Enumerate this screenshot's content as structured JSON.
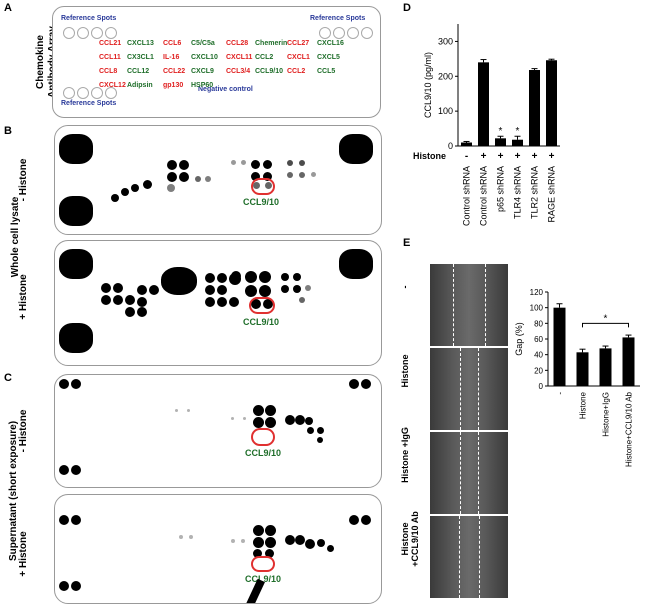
{
  "labels": {
    "A": "A",
    "B": "B",
    "C": "C",
    "D": "D",
    "E": "E"
  },
  "panelA": {
    "side_label_line1": "Chemokine",
    "side_label_line2": "Antibody Array",
    "ref_top_left": "Reference Spots",
    "ref_top_right": "Reference Spots",
    "ref_bottom": "Reference Spots",
    "negative": "Negative control",
    "rows": [
      [
        "CCL21",
        "CXCL13",
        "CCL6",
        "C5/C5a",
        "CCL28",
        "Chemerin",
        "CCL27",
        "CXCL16"
      ],
      [
        "CCL11",
        "CX3CL1",
        "IL-16",
        "CXCL10",
        "CXCL11",
        "CCL2",
        "CXCL1",
        "CXCL5"
      ],
      [
        "CCL8",
        "CCL12",
        "CCL22",
        "CXCL9",
        "CCL3/4",
        "CCL9/10",
        "CCL2",
        "CCL5"
      ],
      [
        "CXCL12",
        "Adipsin",
        "gp130",
        "HSP60"
      ]
    ],
    "row_colors": [
      [
        "red",
        "grn",
        "red",
        "grn",
        "red",
        "grn",
        "red",
        "grn"
      ],
      [
        "red",
        "grn",
        "red",
        "grn",
        "red",
        "grn",
        "red",
        "grn"
      ],
      [
        "red",
        "grn",
        "red",
        "grn",
        "red",
        "grn",
        "red",
        "grn"
      ],
      [
        "red",
        "grn",
        "red",
        "grn"
      ]
    ]
  },
  "panelB": {
    "side_label": "Whole cell lysate",
    "top_label": "- Histone",
    "bottom_label": "+ Histone",
    "target": "CCL9/10"
  },
  "panelC": {
    "side_label": "Supernatant (short exposure)",
    "top_label": "- Histone",
    "bottom_label": "+ Histone",
    "target": "CCL9/10"
  },
  "chart_data": [
    {
      "type": "bar",
      "panel": "D",
      "ylabel": "CCL9/10 (pg/ml)",
      "ylim": [
        0,
        350
      ],
      "yticks": [
        "0",
        "100",
        "200",
        "300"
      ],
      "histone_label": "Histone",
      "histone_signs": [
        "-",
        "+",
        "+",
        "+",
        "+",
        "+"
      ],
      "categories": [
        "Control shRNA",
        "Control shRNA",
        "p65 shRNA",
        "TLR4 shRNA",
        "TLR2 shRNA",
        "RAGE shRNA"
      ],
      "values": [
        10,
        240,
        22,
        18,
        218,
        246
      ],
      "errors": [
        3,
        8,
        6,
        10,
        4,
        3
      ],
      "significance": [
        "",
        "",
        "*",
        "*",
        "",
        ""
      ]
    },
    {
      "type": "bar",
      "panel": "E",
      "ylabel": "Gap (%)",
      "ylim": [
        0,
        120
      ],
      "yticks": [
        "0",
        "20",
        "40",
        "60",
        "80",
        "100",
        "120"
      ],
      "categories": [
        "-",
        "Histone",
        "Histone+IgG",
        "Histone+CCL9/10 Ab"
      ],
      "values": [
        100,
        43,
        48,
        62
      ],
      "errors": [
        5,
        4,
        3,
        3
      ],
      "significance_label": "*"
    }
  ],
  "panelE_images": {
    "labels": [
      "-",
      "Histone",
      "Histone +IgG",
      "Histone +CCL9/10 Ab"
    ]
  }
}
